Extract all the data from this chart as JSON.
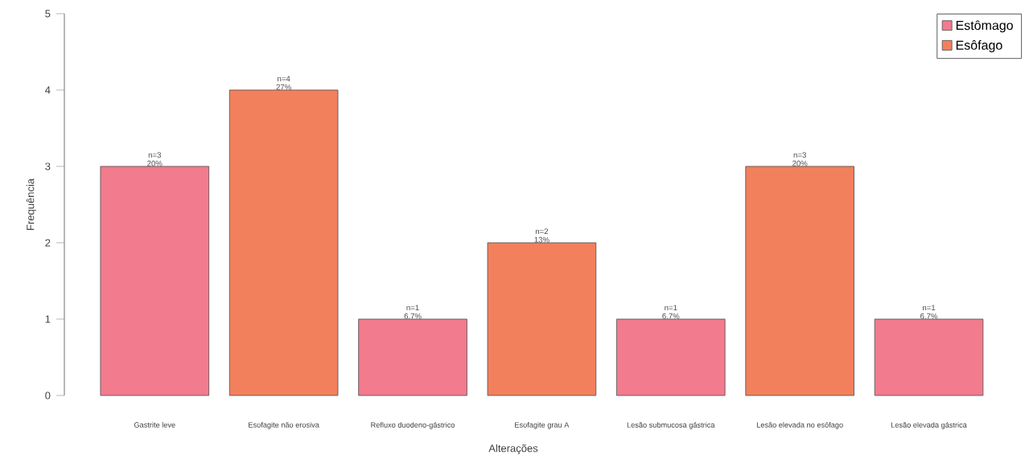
{
  "chart_data": {
    "type": "bar",
    "xlabel": "Alterações",
    "ylabel": "Frequência",
    "categories": [
      "Gastrite leve",
      "Esofagite não erosiva",
      "Refluxo duodeno-gástrico",
      "Esofagite grau A",
      "Lesão submucosa gástrica",
      "Lesão elevada no esôfago",
      "Lesão elevada gástrica"
    ],
    "series": [
      {
        "name": "Estômago",
        "color": "#f27b8e",
        "values": [
          3,
          null,
          1,
          null,
          1,
          null,
          1
        ],
        "value_labels": [
          "n=3 20%",
          null,
          "n=1 6.7%",
          null,
          "n=1 6.7%",
          null,
          "n=1 6.7%"
        ]
      },
      {
        "name": "Esôfago",
        "color": "#f2805c",
        "values": [
          null,
          4,
          null,
          2,
          null,
          3,
          null
        ],
        "value_labels": [
          null,
          "n=4 27%",
          null,
          "n=2 13%",
          null,
          "n=3 20%",
          null
        ]
      }
    ],
    "ylim": [
      0,
      5
    ],
    "yticks": [
      0,
      1,
      2,
      3,
      4,
      5
    ],
    "grid": false,
    "legend": "top right"
  }
}
